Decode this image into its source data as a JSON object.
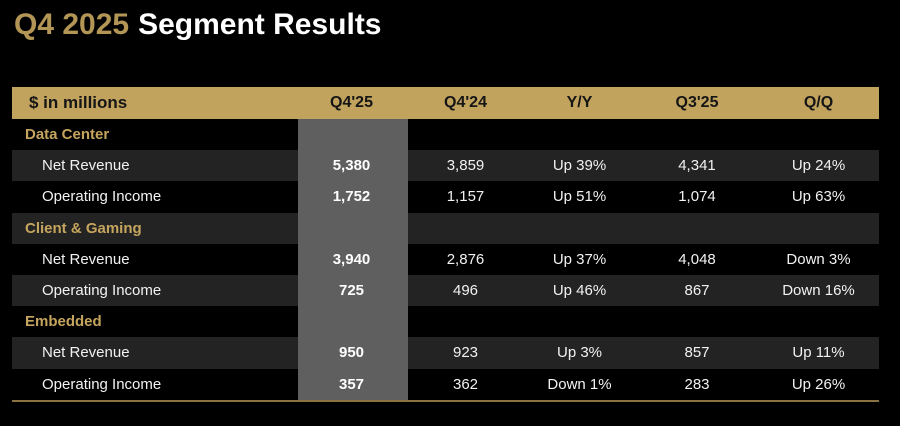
{
  "title": {
    "highlight": "Q4 2025",
    "rest": "Segment Results"
  },
  "colors": {
    "background": "#000000",
    "title_gold": "#b39655",
    "header_gold": "#c2a35e",
    "section_gold": "#c5a55e",
    "stripe_row": "#232323",
    "highlight_band_gray": "#5f5f5f",
    "bottom_border_gold": "#8a7340"
  },
  "chart_data": {
    "type": "table",
    "title": "Q4 2025 Segment Results",
    "unit_label": "$ in millions",
    "highlighted_column": "Q4'25",
    "columns": [
      "$ in millions",
      "Q4'25",
      "Q4'24",
      "Y/Y",
      "Q3'25",
      "Q/Q"
    ],
    "rows": [
      {
        "kind": "section",
        "label": "Data Center"
      },
      {
        "kind": "item",
        "label": "Net Revenue",
        "values": [
          "5,380",
          "3,859",
          "Up 39%",
          "4,341",
          "Up 24%"
        ]
      },
      {
        "kind": "item",
        "label": "Operating Income",
        "values": [
          "1,752",
          "1,157",
          "Up 51%",
          "1,074",
          "Up 63%"
        ]
      },
      {
        "kind": "section",
        "label": "Client & Gaming"
      },
      {
        "kind": "item",
        "label": "Net Revenue",
        "values": [
          "3,940",
          "2,876",
          "Up 37%",
          "4,048",
          "Down 3%"
        ]
      },
      {
        "kind": "item",
        "label": "Operating Income",
        "values": [
          "725",
          "496",
          "Up 46%",
          "867",
          "Down 16%"
        ]
      },
      {
        "kind": "section",
        "label": "Embedded"
      },
      {
        "kind": "item",
        "label": "Net Revenue",
        "values": [
          "950",
          "923",
          "Up 3%",
          "857",
          "Up 11%"
        ]
      },
      {
        "kind": "item",
        "label": "Operating Income",
        "values": [
          "357",
          "362",
          "Down 1%",
          "283",
          "Up 26%"
        ]
      }
    ]
  }
}
